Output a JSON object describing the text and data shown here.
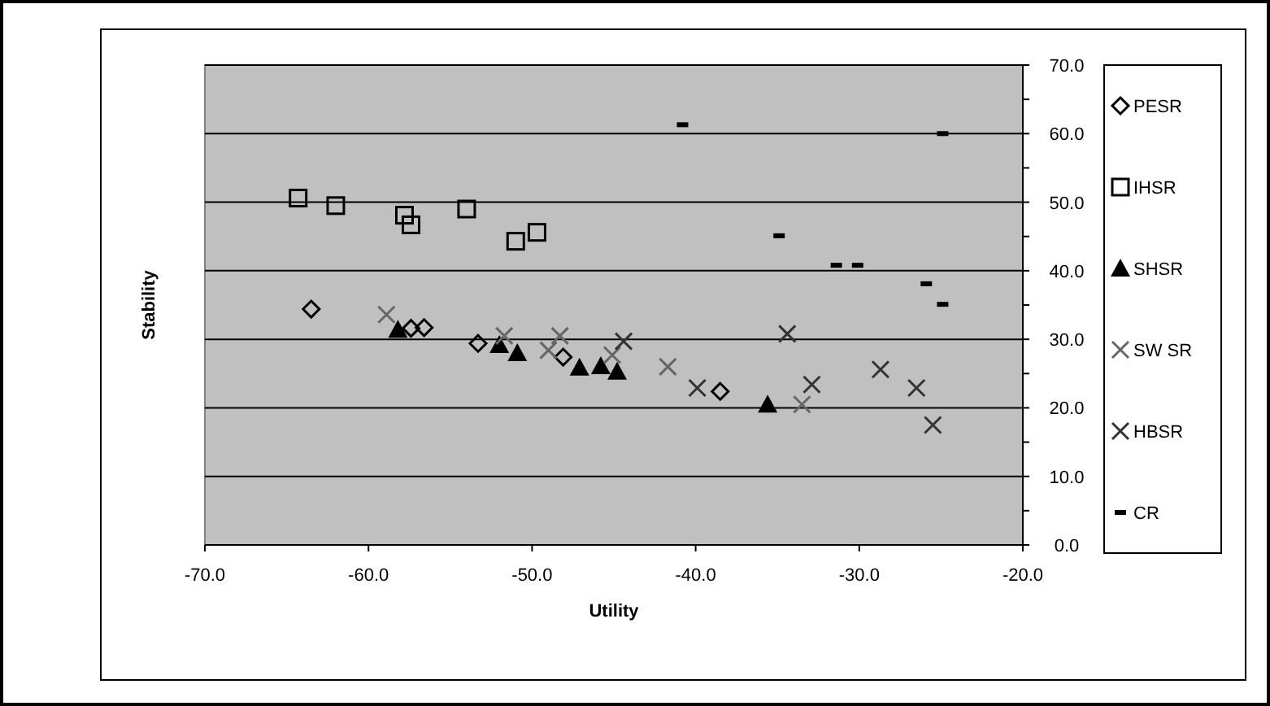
{
  "chart_data": {
    "type": "scatter",
    "xlabel": "Utility",
    "ylabel": "Stability",
    "xlim": [
      -70,
      -20
    ],
    "xticks": [
      {
        "value": -70,
        "label": "-70.0"
      },
      {
        "value": -60,
        "label": "-60.0"
      },
      {
        "value": -50,
        "label": "-50.0"
      },
      {
        "value": -40,
        "label": "-40.0"
      },
      {
        "value": -30,
        "label": "-30.0"
      },
      {
        "value": -20,
        "label": "-20.0"
      }
    ],
    "ylim": [
      0,
      70
    ],
    "yticks": [
      {
        "value": 0,
        "label": "0.0"
      },
      {
        "value": 5,
        "label": null
      },
      {
        "value": 10,
        "label": "10.0"
      },
      {
        "value": 15,
        "label": null
      },
      {
        "value": 20,
        "label": "20.0"
      },
      {
        "value": 25,
        "label": null
      },
      {
        "value": 30,
        "label": "30.0"
      },
      {
        "value": 35,
        "label": null
      },
      {
        "value": 40,
        "label": "40.0"
      },
      {
        "value": 45,
        "label": null
      },
      {
        "value": 50,
        "label": "50.0"
      },
      {
        "value": 55,
        "label": null
      },
      {
        "value": 60,
        "label": "60.0"
      },
      {
        "value": 65,
        "label": null
      },
      {
        "value": 70,
        "label": "70.0"
      }
    ],
    "grid": "y",
    "legend": "right",
    "series": [
      {
        "name": "PESR",
        "color": "#000000",
        "marker": "diamond",
        "x": [
          -63.5,
          -57.4,
          -56.6,
          -53.3,
          -48.1,
          -38.5
        ],
        "values": [
          34.4,
          31.6,
          31.7,
          29.4,
          27.4,
          22.4
        ]
      },
      {
        "name": "IHSR",
        "color": "#000000",
        "marker": "square",
        "x": [
          -64.3,
          -62.0,
          -57.8,
          -57.4,
          -54.0,
          -51.0,
          -49.7
        ],
        "values": [
          50.6,
          49.5,
          48.1,
          46.7,
          49.0,
          44.3,
          45.6
        ]
      },
      {
        "name": "SHSR",
        "color": "#000000",
        "marker": "triangle",
        "x": [
          -58.2,
          -52.0,
          -50.9,
          -47.1,
          -45.8,
          -44.8,
          -35.6
        ],
        "values": [
          31.4,
          29.2,
          28.0,
          25.9,
          26.1,
          25.3,
          20.5
        ]
      },
      {
        "name": "SW SR",
        "color": "#666666",
        "marker": "cross",
        "x": [
          -58.9,
          -51.7,
          -49.0,
          -48.3,
          -45.1,
          -41.7,
          -33.5
        ],
        "values": [
          33.6,
          30.5,
          28.4,
          30.5,
          27.7,
          26.0,
          20.5
        ]
      },
      {
        "name": "HBSR",
        "color": "#333333",
        "marker": "cross",
        "x": [
          -44.4,
          -39.9,
          -34.4,
          -32.9,
          -28.7,
          -26.5,
          -25.5
        ],
        "values": [
          29.7,
          22.9,
          30.8,
          23.4,
          25.6,
          22.9,
          17.5
        ]
      },
      {
        "name": "CR",
        "color": "#000000",
        "x": [
          -40.8,
          -24.9,
          -34.9,
          -31.4,
          -30.1,
          -25.9,
          -24.9
        ],
        "values": [
          61.3,
          60.0,
          45.1,
          40.8,
          40.8,
          38.1,
          35.1
        ]
      }
    ]
  }
}
